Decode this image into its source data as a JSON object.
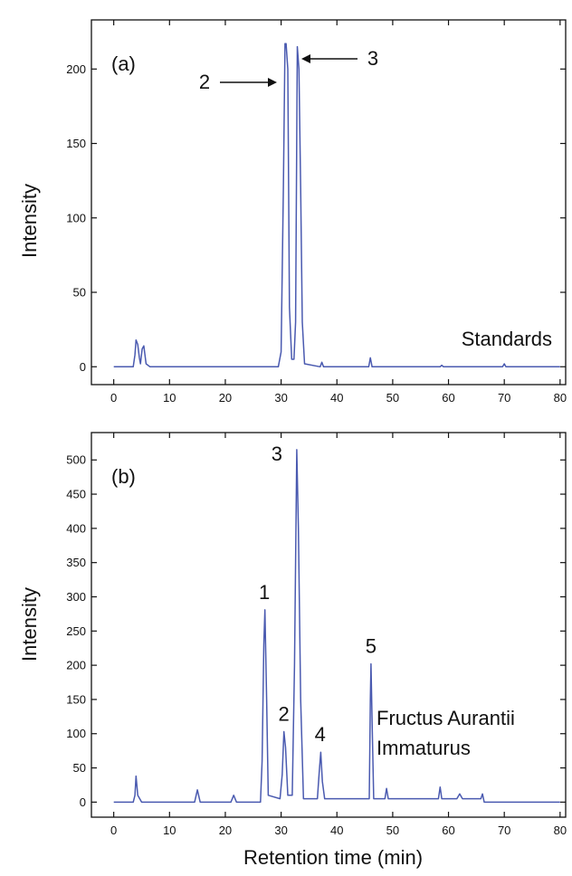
{
  "chart_data": [
    {
      "type": "line",
      "panel_label": "(a)",
      "annotation": "Standards",
      "xlabel": "",
      "ylabel": "Intensity",
      "xlim": [
        -4,
        81
      ],
      "ylim": [
        -12,
        233
      ],
      "xticks": [
        0,
        10,
        20,
        30,
        40,
        50,
        60,
        70,
        80
      ],
      "yticks": [
        0,
        50,
        100,
        150,
        200
      ],
      "line_color": "#4a5ab0",
      "peak_labels": [
        {
          "text": "2",
          "x": 30.8,
          "y": 217
        },
        {
          "text": "3",
          "x": 33.0,
          "y": 215
        }
      ],
      "series": [
        {
          "x": [
            0,
            3.5,
            3.8,
            4.0,
            4.3,
            4.6,
            4.8,
            5.1,
            5.4,
            5.8,
            6.5,
            29.5,
            30.0,
            30.4,
            30.7,
            30.9,
            31.2,
            31.5,
            31.9,
            32.3,
            32.6,
            32.9,
            33.2,
            33.5,
            33.8,
            34.2,
            37.0,
            37.3,
            37.6,
            45.7,
            46.0,
            46.3,
            58.5,
            58.8,
            59.1,
            69.7,
            70.0,
            70.3,
            80
          ],
          "y": [
            0,
            0,
            8,
            18,
            15,
            6,
            2,
            12,
            14,
            2,
            0,
            0,
            10,
            120,
            217,
            217,
            200,
            40,
            5,
            5,
            30,
            215,
            200,
            120,
            30,
            2,
            0,
            3,
            0,
            0,
            6,
            0,
            0,
            1,
            0,
            0,
            2,
            0,
            0
          ]
        }
      ],
      "grid": false
    },
    {
      "type": "line",
      "panel_label": "(b)",
      "annotation": [
        "Fructus Aurantii",
        "Immaturus"
      ],
      "xlabel": "Retention time (min)",
      "ylabel": "Intensity",
      "xlim": [
        -4,
        81
      ],
      "ylim": [
        -22,
        540
      ],
      "xticks": [
        0,
        10,
        20,
        30,
        40,
        50,
        60,
        70,
        80
      ],
      "yticks": [
        0,
        50,
        100,
        150,
        200,
        250,
        300,
        350,
        400,
        450,
        500
      ],
      "line_color": "#4a5ab0",
      "peak_labels": [
        {
          "text": "1",
          "x": 27.0,
          "y": 281
        },
        {
          "text": "2",
          "x": 30.5,
          "y": 103
        },
        {
          "text": "3",
          "x": 32.8,
          "y": 515
        },
        {
          "text": "4",
          "x": 37.0,
          "y": 73
        },
        {
          "text": "5",
          "x": 46.1,
          "y": 202
        }
      ],
      "series": [
        {
          "x": [
            0,
            3.5,
            3.8,
            4.0,
            4.3,
            5.0,
            14.5,
            15.0,
            15.5,
            21.0,
            21.5,
            22.0,
            26.3,
            26.6,
            26.9,
            27.1,
            27.4,
            27.7,
            29.8,
            30.2,
            30.5,
            30.8,
            31.2,
            32.0,
            32.4,
            32.8,
            33.1,
            33.5,
            34.0,
            36.5,
            36.8,
            37.1,
            37.4,
            37.8,
            45.8,
            46.0,
            46.1,
            46.3,
            46.6,
            48.6,
            48.9,
            49.2,
            58.2,
            58.5,
            58.8,
            61.5,
            62.0,
            62.5,
            65.8,
            66.1,
            66.4,
            80
          ],
          "y": [
            0,
            0,
            10,
            38,
            10,
            0,
            0,
            18,
            0,
            0,
            10,
            0,
            0,
            60,
            230,
            281,
            150,
            10,
            5,
            40,
            103,
            80,
            10,
            10,
            200,
            515,
            400,
            150,
            5,
            5,
            40,
            73,
            30,
            5,
            5,
            150,
            202,
            120,
            5,
            5,
            20,
            5,
            5,
            22,
            5,
            5,
            12,
            5,
            5,
            12,
            0,
            0
          ]
        }
      ],
      "grid": false
    }
  ]
}
